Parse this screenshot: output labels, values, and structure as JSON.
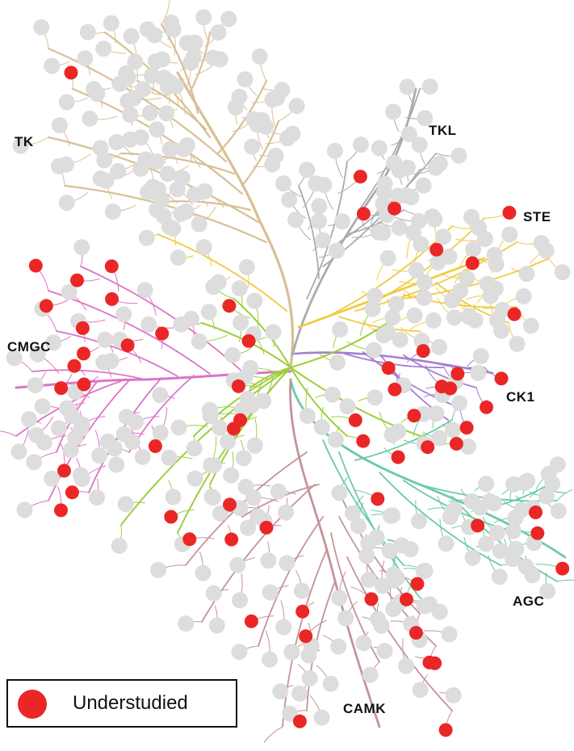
{
  "groups": [
    {
      "name": "TK",
      "color": "#d9bf95",
      "node_count": 92,
      "understudied_count": 1
    },
    {
      "name": "TKL",
      "color": "#ababab",
      "node_count": 42,
      "understudied_count": 3
    },
    {
      "name": "STE",
      "color": "#f0cb44",
      "node_count": 47,
      "understudied_count": 5
    },
    {
      "name": "CK1",
      "color": "#a57fcf",
      "node_count": 12,
      "understudied_count": 10
    },
    {
      "name": "AGC",
      "color": "#6ccaa3",
      "node_count": 63,
      "understudied_count": 9
    },
    {
      "name": "CAMK",
      "color": "#c49399",
      "node_count": 74,
      "understudied_count": 14
    },
    {
      "name": "CMGC",
      "color": "#dd74c7",
      "node_count": 63,
      "understudied_count": 17
    }
  ],
  "other_branches_color": "#9ccf3c",
  "node_colors": {
    "studied": "#dddddd",
    "understudied": "#ea2726"
  },
  "legend": {
    "label": "Understudied",
    "color": "#ea2726"
  }
}
